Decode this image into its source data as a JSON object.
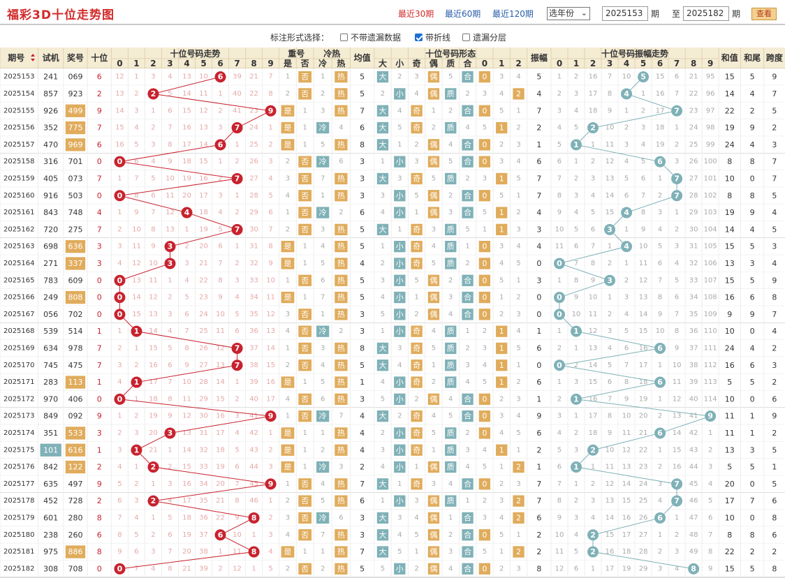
{
  "header": {
    "title": "福彩3D十位走势图",
    "periods": [
      "最近30期",
      "最近60期",
      "最近120期"
    ],
    "active_period": 0,
    "year_select": "选年份",
    "from_value": "2025153",
    "from_suffix": "期",
    "to_prefix": "至",
    "to_value": "2025182",
    "to_suffix": "期",
    "query_label": "查看"
  },
  "options": {
    "label": "标注形式选择：",
    "items": [
      {
        "label": "不带遗漏数据",
        "checked": false
      },
      {
        "label": "带折线",
        "checked": true
      },
      {
        "label": "遗漏分层",
        "checked": false
      }
    ]
  },
  "table": {
    "group_headers": {
      "trend": "十位号码走势",
      "repeat": "重号",
      "hotcold": "冷热",
      "avg": "均值",
      "form": "十位号码形态",
      "amp": "振幅",
      "amp_trend": "十位号码振幅走势",
      "sum": "和值",
      "tail": "和尾",
      "span": "跨度"
    },
    "col_headers": {
      "issue": "期号",
      "trial": "试机",
      "prize": "奖号",
      "tens": "十位",
      "repeat": [
        "是",
        "否"
      ],
      "hotcold": [
        "冷",
        "热"
      ],
      "form": [
        "大",
        "小",
        "奇",
        "偶",
        "质",
        "合",
        "0",
        "1",
        "2"
      ]
    },
    "digits": [
      "0",
      "1",
      "2",
      "3",
      "4",
      "5",
      "6",
      "7",
      "8",
      "9"
    ],
    "labels": {
      "big": "大",
      "small": "小",
      "odd": "奇",
      "even": "偶",
      "prime": "质",
      "comp": "合",
      "yes": "是",
      "no": "否",
      "cold": "冷",
      "hot": "热"
    },
    "rows": [
      {
        "issue": "2025153",
        "trial": "241",
        "prize": "069",
        "tens": 6,
        "pt": 0,
        "tt": 0,
        "hot": 1,
        "avg": 5,
        "amp": 5,
        "sum": 15,
        "tail": 5,
        "span": 9,
        "omit": [
          12,
          1,
          3,
          4,
          13,
          10,
          0,
          39,
          21,
          7
        ],
        "ao": [
          1,
          2,
          16,
          7,
          10,
          0,
          15,
          6,
          21,
          95
        ]
      },
      {
        "issue": "2025154",
        "trial": "857",
        "prize": "923",
        "tens": 2,
        "pt": 0,
        "tt": 0,
        "hot": 1,
        "avg": 5,
        "amp": 4,
        "sum": 14,
        "tail": 4,
        "span": 7,
        "omit": [
          13,
          2,
          0,
          5,
          14,
          11,
          1,
          40,
          22,
          8
        ],
        "ao": [
          2,
          3,
          17,
          8,
          0,
          1,
          16,
          7,
          22,
          96
        ]
      },
      {
        "issue": "2025155",
        "trial": "926",
        "prize": "499",
        "tens": 9,
        "pt": 1,
        "tt": 0,
        "hot": 1,
        "avg": 7,
        "amp": 7,
        "sum": 22,
        "tail": 2,
        "span": 5,
        "omit": [
          14,
          3,
          1,
          6,
          15,
          12,
          2,
          41,
          23,
          0
        ],
        "ao": [
          3,
          4,
          18,
          9,
          1,
          2,
          17,
          0,
          23,
          97
        ]
      },
      {
        "issue": "2025156",
        "trial": "352",
        "prize": "775",
        "tens": 7,
        "pt": 1,
        "tt": 0,
        "hot": 0,
        "avg": 6,
        "amp": 2,
        "sum": 19,
        "tail": 9,
        "span": 2,
        "omit": [
          15,
          4,
          2,
          7,
          16,
          13,
          3,
          0,
          24,
          1
        ],
        "ao": [
          4,
          5,
          0,
          10,
          2,
          3,
          18,
          1,
          24,
          98
        ]
      },
      {
        "issue": "2025157",
        "trial": "470",
        "prize": "969",
        "tens": 6,
        "pt": 1,
        "tt": 0,
        "hot": 1,
        "avg": 8,
        "amp": 1,
        "sum": 24,
        "tail": 4,
        "span": 3,
        "omit": [
          16,
          5,
          3,
          8,
          17,
          14,
          0,
          1,
          25,
          2
        ],
        "ao": [
          5,
          0,
          1,
          11,
          3,
          4,
          19,
          2,
          25,
          99
        ]
      },
      {
        "issue": "2025158",
        "trial": "316",
        "prize": "701",
        "tens": 0,
        "pt": 0,
        "tt": 0,
        "hot": 0,
        "avg": 3,
        "amp": 6,
        "sum": 8,
        "tail": 8,
        "span": 7,
        "omit": [
          0,
          6,
          4,
          9,
          18,
          15,
          1,
          2,
          26,
          3
        ],
        "ao": [
          6,
          1,
          2,
          12,
          4,
          5,
          0,
          3,
          26,
          100
        ]
      },
      {
        "issue": "2025159",
        "trial": "405",
        "prize": "073",
        "tens": 7,
        "pt": 0,
        "tt": 0,
        "hot": 1,
        "avg": 3,
        "amp": 7,
        "sum": 10,
        "tail": 0,
        "span": 7,
        "omit": [
          1,
          7,
          5,
          10,
          19,
          16,
          2,
          0,
          27,
          4
        ],
        "ao": [
          7,
          2,
          3,
          13,
          5,
          6,
          1,
          0,
          27,
          101
        ]
      },
      {
        "issue": "2025160",
        "trial": "916",
        "prize": "503",
        "tens": 0,
        "pt": 0,
        "tt": 0,
        "hot": 1,
        "avg": 3,
        "amp": 7,
        "sum": 8,
        "tail": 8,
        "span": 5,
        "omit": [
          0,
          8,
          6,
          11,
          20,
          17,
          3,
          1,
          28,
          5
        ],
        "ao": [
          8,
          3,
          4,
          14,
          6,
          7,
          2,
          0,
          28,
          102
        ]
      },
      {
        "issue": "2025161",
        "trial": "843",
        "prize": "748",
        "tens": 4,
        "pt": 0,
        "tt": 0,
        "hot": 0,
        "avg": 6,
        "amp": 4,
        "sum": 19,
        "tail": 9,
        "span": 4,
        "omit": [
          1,
          9,
          7,
          12,
          0,
          18,
          4,
          2,
          29,
          6
        ],
        "ao": [
          9,
          4,
          5,
          15,
          0,
          8,
          3,
          1,
          29,
          103
        ]
      },
      {
        "issue": "2025162",
        "trial": "720",
        "prize": "275",
        "tens": 7,
        "pt": 0,
        "tt": 0,
        "hot": 1,
        "avg": 5,
        "amp": 3,
        "sum": 14,
        "tail": 4,
        "span": 5,
        "omit": [
          2,
          10,
          8,
          13,
          1,
          19,
          5,
          0,
          30,
          7
        ],
        "ao": [
          10,
          5,
          6,
          0,
          1,
          9,
          4,
          2,
          30,
          104
        ]
      },
      {
        "issue": "2025163",
        "trial": "698",
        "prize": "636",
        "tens": 3,
        "pt": 1,
        "tt": 0,
        "hot": 1,
        "avg": 5,
        "amp": 4,
        "sum": 15,
        "tail": 5,
        "span": 3,
        "omit": [
          3,
          11,
          9,
          0,
          2,
          20,
          6,
          1,
          31,
          8
        ],
        "ao": [
          11,
          6,
          7,
          1,
          0,
          10,
          5,
          3,
          31,
          105
        ]
      },
      {
        "issue": "2025164",
        "trial": "271",
        "prize": "337",
        "tens": 3,
        "pt": 1,
        "tt": 1,
        "hot": 1,
        "avg": 4,
        "amp": 0,
        "sum": 13,
        "tail": 3,
        "span": 4,
        "omit": [
          4,
          12,
          10,
          0,
          3,
          21,
          7,
          2,
          32,
          9
        ],
        "ao": [
          0,
          7,
          8,
          2,
          1,
          11,
          6,
          4,
          32,
          106
        ]
      },
      {
        "issue": "2025165",
        "trial": "783",
        "prize": "609",
        "tens": 0,
        "pt": 0,
        "tt": 0,
        "hot": 1,
        "avg": 5,
        "amp": 3,
        "sum": 15,
        "tail": 5,
        "span": 9,
        "omit": [
          0,
          13,
          11,
          1,
          4,
          22,
          8,
          3,
          33,
          10
        ],
        "ao": [
          1,
          8,
          9,
          0,
          2,
          12,
          7,
          5,
          33,
          107
        ]
      },
      {
        "issue": "2025166",
        "trial": "249",
        "prize": "808",
        "tens": 0,
        "pt": 1,
        "tt": 1,
        "hot": 1,
        "avg": 5,
        "amp": 0,
        "sum": 16,
        "tail": 6,
        "span": 8,
        "omit": [
          0,
          14,
          12,
          2,
          5,
          23,
          9,
          4,
          34,
          11
        ],
        "ao": [
          0,
          9,
          10,
          1,
          3,
          13,
          8,
          6,
          34,
          108
        ]
      },
      {
        "issue": "2025167",
        "trial": "056",
        "prize": "702",
        "tens": 0,
        "pt": 0,
        "tt": 1,
        "hot": 1,
        "avg": 3,
        "amp": 0,
        "sum": 9,
        "tail": 9,
        "span": 7,
        "omit": [
          0,
          15,
          13,
          3,
          6,
          24,
          10,
          5,
          35,
          12
        ],
        "ao": [
          0,
          10,
          11,
          2,
          4,
          14,
          9,
          7,
          35,
          109
        ]
      },
      {
        "issue": "2025168",
        "trial": "539",
        "prize": "514",
        "tens": 1,
        "pt": 0,
        "tt": 0,
        "hot": 0,
        "avg": 3,
        "amp": 1,
        "sum": 10,
        "tail": 0,
        "span": 4,
        "omit": [
          1,
          0,
          14,
          4,
          7,
          25,
          11,
          6,
          36,
          13
        ],
        "ao": [
          1,
          0,
          12,
          3,
          5,
          15,
          10,
          8,
          36,
          110
        ]
      },
      {
        "issue": "2025169",
        "trial": "634",
        "prize": "978",
        "tens": 7,
        "pt": 0,
        "tt": 0,
        "hot": 1,
        "avg": 8,
        "amp": 6,
        "sum": 24,
        "tail": 4,
        "span": 2,
        "omit": [
          2,
          1,
          15,
          5,
          8,
          26,
          12,
          0,
          37,
          14
        ],
        "ao": [
          2,
          1,
          13,
          4,
          6,
          16,
          0,
          9,
          37,
          111
        ]
      },
      {
        "issue": "2025170",
        "trial": "745",
        "prize": "475",
        "tens": 7,
        "pt": 0,
        "tt": 1,
        "hot": 1,
        "avg": 5,
        "amp": 0,
        "sum": 16,
        "tail": 6,
        "span": 3,
        "omit": [
          3,
          2,
          16,
          6,
          9,
          27,
          13,
          0,
          38,
          15
        ],
        "ao": [
          0,
          2,
          14,
          5,
          7,
          17,
          1,
          10,
          38,
          112
        ]
      },
      {
        "issue": "2025171",
        "trial": "283",
        "prize": "113",
        "tens": 1,
        "pt": 1,
        "tt": 0,
        "hot": 1,
        "avg": 1,
        "amp": 6,
        "sum": 5,
        "tail": 5,
        "span": 2,
        "omit": [
          4,
          0,
          17,
          7,
          10,
          28,
          14,
          1,
          39,
          16
        ],
        "ao": [
          1,
          3,
          15,
          6,
          8,
          18,
          0,
          11,
          39,
          113
        ]
      },
      {
        "issue": "2025172",
        "trial": "970",
        "prize": "406",
        "tens": 0,
        "pt": 0,
        "tt": 0,
        "hot": 1,
        "avg": 3,
        "amp": 1,
        "sum": 10,
        "tail": 0,
        "span": 6,
        "omit": [
          0,
          1,
          18,
          8,
          11,
          29,
          15,
          2,
          40,
          17
        ],
        "ao": [
          2,
          0,
          16,
          7,
          9,
          19,
          1,
          12,
          40,
          114
        ]
      },
      {
        "issue": "2025173",
        "trial": "849",
        "prize": "092",
        "tens": 9,
        "pt": 0,
        "tt": 0,
        "hot": 0,
        "avg": 4,
        "amp": 9,
        "sum": 11,
        "tail": 1,
        "span": 9,
        "omit": [
          1,
          2,
          19,
          9,
          12,
          30,
          16,
          3,
          41,
          0
        ],
        "ao": [
          3,
          1,
          17,
          8,
          10,
          20,
          2,
          13,
          41,
          0
        ]
      },
      {
        "issue": "2025174",
        "trial": "351",
        "prize": "533",
        "tens": 3,
        "pt": 1,
        "tt": 0,
        "hot": 1,
        "avg": 4,
        "amp": 6,
        "sum": 11,
        "tail": 1,
        "span": 2,
        "omit": [
          2,
          3,
          20,
          0,
          13,
          31,
          17,
          4,
          42,
          1
        ],
        "ao": [
          4,
          2,
          18,
          9,
          11,
          21,
          0,
          14,
          42,
          1
        ]
      },
      {
        "issue": "2025175",
        "trial": "101",
        "prize": "616",
        "tens": 1,
        "pt": 1,
        "tt": 0,
        "hot": 1,
        "avg": 4,
        "amp": 2,
        "sum": 13,
        "tail": 3,
        "span": 5,
        "omit": [
          3,
          0,
          21,
          1,
          14,
          32,
          18,
          5,
          43,
          2
        ],
        "ao": [
          5,
          3,
          0,
          10,
          12,
          22,
          1,
          15,
          43,
          2
        ],
        "trial_hl": 1
      },
      {
        "issue": "2025176",
        "trial": "842",
        "prize": "122",
        "tens": 2,
        "pt": 1,
        "tt": 0,
        "hot": 0,
        "avg": 2,
        "amp": 1,
        "sum": 5,
        "tail": 5,
        "span": 1,
        "omit": [
          4,
          1,
          0,
          2,
          15,
          33,
          19,
          6,
          44,
          3
        ],
        "ao": [
          6,
          0,
          1,
          11,
          13,
          23,
          2,
          16,
          44,
          3
        ]
      },
      {
        "issue": "2025177",
        "trial": "635",
        "prize": "497",
        "tens": 9,
        "pt": 0,
        "tt": 0,
        "hot": 1,
        "avg": 7,
        "amp": 7,
        "sum": 20,
        "tail": 0,
        "span": 5,
        "omit": [
          5,
          2,
          1,
          3,
          16,
          34,
          20,
          7,
          45,
          0
        ],
        "ao": [
          7,
          1,
          2,
          12,
          14,
          24,
          3,
          0,
          45,
          4
        ]
      },
      {
        "issue": "2025178",
        "trial": "452",
        "prize": "728",
        "tens": 2,
        "pt": 0,
        "tt": 0,
        "hot": 1,
        "avg": 6,
        "amp": 7,
        "sum": 17,
        "tail": 7,
        "span": 6,
        "omit": [
          6,
          3,
          0,
          4,
          17,
          35,
          21,
          8,
          46,
          1
        ],
        "ao": [
          8,
          2,
          3,
          13,
          15,
          25,
          4,
          0,
          46,
          5
        ]
      },
      {
        "issue": "2025179",
        "trial": "601",
        "prize": "280",
        "tens": 8,
        "pt": 0,
        "tt": 0,
        "hot": 0,
        "avg": 3,
        "amp": 6,
        "sum": 10,
        "tail": 0,
        "span": 8,
        "omit": [
          7,
          4,
          1,
          5,
          18,
          36,
          22,
          9,
          0,
          2
        ],
        "ao": [
          9,
          3,
          4,
          14,
          16,
          26,
          0,
          1,
          47,
          6
        ]
      },
      {
        "issue": "2025180",
        "trial": "238",
        "prize": "260",
        "tens": 6,
        "pt": 0,
        "tt": 0,
        "hot": 1,
        "avg": 3,
        "amp": 2,
        "sum": 8,
        "tail": 8,
        "span": 6,
        "omit": [
          8,
          5,
          2,
          6,
          19,
          37,
          0,
          10,
          1,
          3
        ],
        "ao": [
          10,
          4,
          0,
          15,
          17,
          27,
          1,
          2,
          48,
          7
        ]
      },
      {
        "issue": "2025181",
        "trial": "975",
        "prize": "886",
        "tens": 8,
        "pt": 1,
        "tt": 0,
        "hot": 1,
        "avg": 7,
        "amp": 2,
        "sum": 22,
        "tail": 2,
        "span": 2,
        "omit": [
          9,
          6,
          3,
          7,
          20,
          38,
          1,
          11,
          0,
          4
        ],
        "ao": [
          11,
          5,
          0,
          16,
          18,
          28,
          2,
          3,
          49,
          8
        ]
      },
      {
        "issue": "2025182",
        "trial": "308",
        "prize": "708",
        "tens": 0,
        "pt": 0,
        "tt": 0,
        "hot": 1,
        "avg": 5,
        "amp": 8,
        "sum": 15,
        "tail": 5,
        "span": 8,
        "omit": [
          0,
          7,
          4,
          8,
          21,
          39,
          2,
          12,
          1,
          5
        ],
        "ao": [
          12,
          6,
          1,
          17,
          19,
          29,
          3,
          4,
          0,
          9
        ]
      }
    ]
  },
  "colors": {
    "red": "#c8222e",
    "teal": "#7fb1b7",
    "orange": "#e0ac5c",
    "header_bg": "#f5ecd4",
    "line": "#c8222e"
  }
}
